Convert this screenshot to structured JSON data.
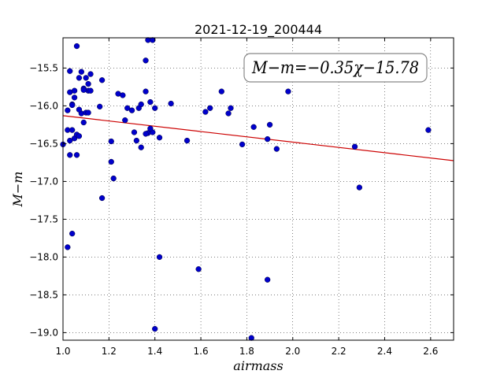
{
  "chart_data": {
    "type": "scatter",
    "title": "2021-12-19_200444",
    "xlabel": "airmass",
    "ylabel": "M−m",
    "xlim": [
      1.0,
      2.7
    ],
    "ylim": [
      -19.1,
      -15.1
    ],
    "y_inverted": true,
    "grid": true,
    "x_ticks": [
      1.0,
      1.2,
      1.4,
      1.6,
      1.8,
      2.0,
      2.2,
      2.4,
      2.6
    ],
    "x_tick_labels": [
      "1.0",
      "1.2",
      "1.4",
      "1.6",
      "1.8",
      "2.0",
      "2.2",
      "2.4",
      "2.6"
    ],
    "y_ticks": [
      -15.5,
      -16.0,
      -16.5,
      -17.0,
      -17.5,
      -18.0,
      -18.5,
      -19.0
    ],
    "y_tick_labels": [
      "−15.5",
      "−16.0",
      "−16.5",
      "−17.0",
      "−17.5",
      "−18.0",
      "−18.5",
      "−19.0"
    ],
    "point_color": "#0000cc",
    "fit_line": {
      "slope": -0.35,
      "intercept": -15.78,
      "color": "#cc0000"
    },
    "annotation": "M−m=−0.35χ−15.78",
    "x": [
      1.0,
      1.02,
      1.03,
      1.04,
      1.05,
      1.03,
      1.02,
      1.04,
      1.05,
      1.06,
      1.07,
      1.08,
      1.09,
      1.1,
      1.11,
      1.12,
      1.03,
      1.04,
      1.05,
      1.06,
      1.07,
      1.08,
      1.09,
      1.1,
      1.11,
      1.02,
      1.03,
      1.04,
      1.06,
      1.07,
      1.09,
      1.11,
      1.12,
      1.17,
      1.16,
      1.17,
      1.21,
      1.21,
      1.22,
      1.24,
      1.26,
      1.27,
      1.28,
      1.3,
      1.31,
      1.33,
      1.34,
      1.32,
      1.34,
      1.36,
      1.36,
      1.37,
      1.38,
      1.37,
      1.39,
      1.39,
      1.4,
      1.36,
      1.38,
      1.42,
      1.47,
      1.54,
      1.62,
      1.64,
      1.69,
      1.72,
      1.73,
      1.78,
      1.83,
      1.89,
      1.9,
      1.93,
      1.98,
      2.27,
      2.29,
      2.59,
      1.42,
      1.59,
      1.89,
      1.4,
      1.82
    ],
    "y": [
      -16.51,
      -16.32,
      -16.46,
      -16.32,
      -16.43,
      -15.82,
      -16.06,
      -15.98,
      -15.8,
      -15.21,
      -15.63,
      -15.55,
      -15.77,
      -15.63,
      -15.71,
      -15.58,
      -15.54,
      -15.99,
      -15.89,
      -16.38,
      -16.4,
      -16.1,
      -16.22,
      -16.09,
      -15.8,
      -17.87,
      -16.65,
      -17.69,
      -16.65,
      -16.05,
      -15.79,
      -16.09,
      -15.8,
      -15.66,
      -16.01,
      -17.22,
      -16.74,
      -16.47,
      -16.96,
      -15.84,
      -15.86,
      -16.19,
      -16.03,
      -16.06,
      -16.35,
      -16.03,
      -15.98,
      -16.46,
      -16.55,
      -15.81,
      -15.4,
      -15.13,
      -15.95,
      -16.36,
      -16.35,
      -15.13,
      -16.03,
      -16.37,
      -16.3,
      -16.42,
      -15.97,
      -16.46,
      -16.08,
      -16.03,
      -15.81,
      -16.1,
      -16.03,
      -16.51,
      -16.28,
      -16.44,
      -16.25,
      -16.57,
      -15.81,
      -16.54,
      -17.08,
      -16.32,
      -18.0,
      -18.16,
      -18.3,
      -18.95,
      -19.07
    ]
  }
}
